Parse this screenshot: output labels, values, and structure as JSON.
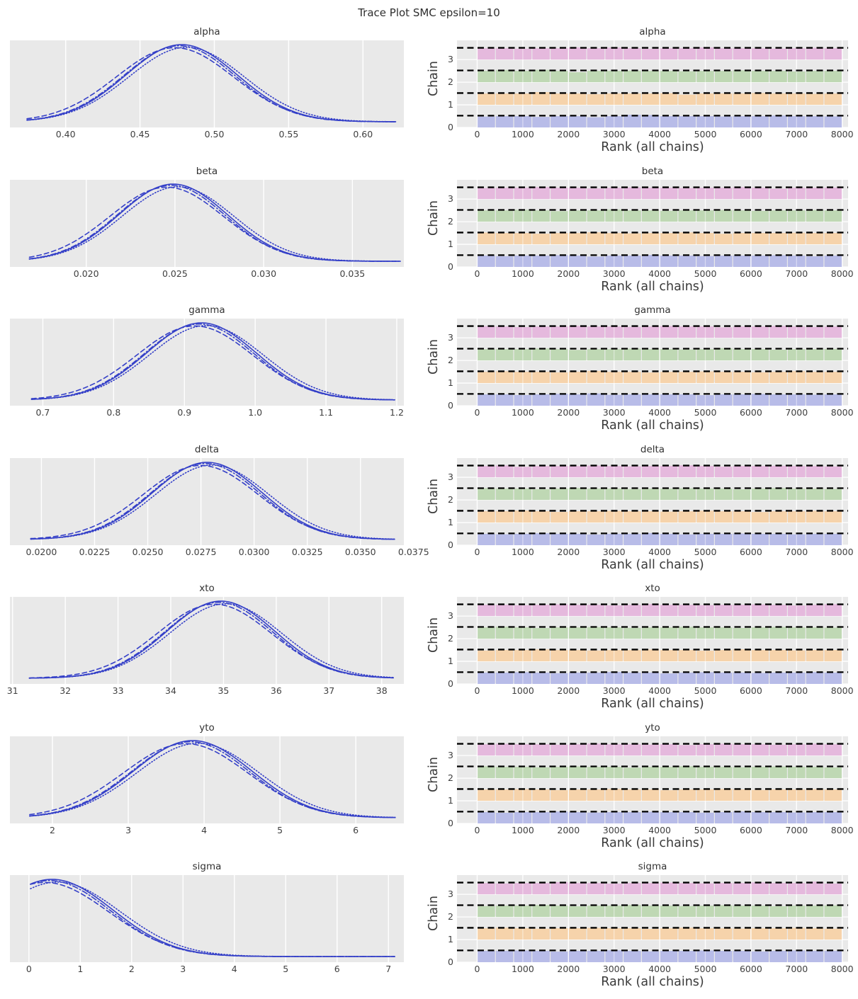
{
  "title": "Trace Plot SMC epsilon=10",
  "style_colors": {
    "plot_background": "#e9e9e9",
    "grid": "#ffffff",
    "kde_line": "#3540c8",
    "reference_dash": "#000000",
    "rank_chain_colors": [
      "#b8bce8",
      "#f6d3ab",
      "#bfd8b4",
      "#e5b9dd"
    ]
  },
  "chart_data": {
    "type": "trace-rank-plot",
    "suptitle": "Trace Plot SMC epsilon=10",
    "n_chains": 4,
    "chain_linestyles": [
      "solid",
      "dashed",
      "dashdot",
      "dotted"
    ],
    "chain_curve_variation": [
      {
        "linestyle": "solid",
        "mu_off": 0.0,
        "sd_scale": 1.0,
        "amp": 1.0
      },
      {
        "linestyle": "dashed",
        "mu_off": -0.12,
        "sd_scale": 1.05,
        "amp": 0.96
      },
      {
        "linestyle": "dashdot",
        "mu_off": -0.04,
        "sd_scale": 1.0,
        "amp": 0.985
      },
      {
        "linestyle": "dotted",
        "mu_off": 0.09,
        "sd_scale": 1.03,
        "amp": 0.965
      }
    ],
    "rank": {
      "xlabel": "Rank (all chains)",
      "ylabel": "Chain",
      "xticks": [
        0,
        1000,
        2000,
        3000,
        4000,
        5000,
        6000,
        7000,
        8000
      ],
      "xlim": [
        0,
        8000
      ],
      "yticks": [
        0,
        1,
        2,
        3
      ],
      "ylim": [
        0,
        3.85
      ],
      "n_bins": 20,
      "band_height": 0.5,
      "reference_level": 0.52,
      "grid": true,
      "legend": "none"
    },
    "panels": [
      {
        "name": "alpha",
        "kde": {
          "type": "kde",
          "xlim": [
            0.3625,
            0.6275
          ],
          "tick_labels": [
            "0.40",
            "0.45",
            "0.50",
            "0.55",
            "0.60"
          ],
          "tick_values": [
            0.4,
            0.45,
            0.5,
            0.55,
            0.6
          ],
          "mu": 0.478,
          "sd": 0.0375,
          "curve_range": [
            0.374,
            0.622
          ]
        },
        "rank_bar_heights": [
          [
            0.96,
            1,
            1,
            0.93,
            1,
            1,
            0.9,
            1,
            1.12,
            1.1,
            1,
            1,
            1,
            0.97,
            1,
            1,
            1.05,
            1,
            1,
            0.98
          ],
          [
            1,
            1,
            1,
            1.12,
            1,
            1,
            0.94,
            1,
            1,
            1,
            1.03,
            0.9,
            1,
            1,
            1,
            1.04,
            1,
            1,
            0.97,
            1
          ],
          [
            1,
            1.08,
            1,
            1.09,
            1,
            0.88,
            1,
            1,
            1.02,
            1,
            1,
            0.97,
            1,
            1,
            1.05,
            1,
            1,
            0.95,
            1,
            1
          ],
          [
            1,
            1,
            0.96,
            1,
            1,
            1.08,
            1,
            1.06,
            1,
            0.95,
            1,
            1,
            1.07,
            1,
            1,
            1,
            0.97,
            1,
            1.04,
            1
          ]
        ]
      },
      {
        "name": "beta",
        "kde": {
          "type": "kde",
          "xlim": [
            0.0157,
            0.0379
          ],
          "tick_labels": [
            "0.020",
            "0.025",
            "0.030",
            "0.035"
          ],
          "tick_values": [
            0.02,
            0.025,
            0.03,
            0.035
          ],
          "mu": 0.0249,
          "sd": 0.00305,
          "curve_range": [
            0.0168,
            0.0377
          ]
        },
        "rank_bar_heights": [
          [
            1,
            0.95,
            1,
            1,
            1.04,
            1,
            0.92,
            1,
            1,
            1.06,
            1,
            1,
            0.96,
            1,
            1,
            1,
            1.03,
            1,
            0.94,
            1
          ],
          [
            1.04,
            1,
            1,
            0.94,
            1,
            1,
            1.06,
            1,
            0.97,
            1,
            1,
            1.05,
            1,
            0.93,
            1,
            1,
            1,
            1.02,
            1,
            1
          ],
          [
            1,
            1,
            1.05,
            1,
            0.93,
            1,
            1,
            1.08,
            1,
            1,
            0.96,
            1,
            1,
            1.04,
            1,
            0.95,
            1,
            1,
            1.03,
            1
          ],
          [
            0.97,
            1,
            1,
            1.06,
            1,
            1,
            0.94,
            1,
            1.03,
            1,
            1,
            0.97,
            1,
            1,
            1.05,
            1,
            0.92,
            1,
            1,
            1.02
          ]
        ]
      },
      {
        "name": "gamma",
        "kde": {
          "type": "kde",
          "xlim": [
            0.6535,
            1.21
          ],
          "tick_labels": [
            "0.7",
            "0.8",
            "0.9",
            "1.0",
            "1.1",
            "1.2"
          ],
          "tick_values": [
            0.7,
            0.8,
            0.9,
            1.0,
            1.1,
            1.2
          ],
          "mu": 0.924,
          "sd": 0.078,
          "curve_range": [
            0.684,
            1.197
          ]
        },
        "rank_bar_heights": [
          [
            1,
            1,
            0.94,
            1,
            1.05,
            1,
            1.08,
            0.96,
            1,
            1,
            1,
            1,
            0.93,
            1,
            1,
            1.04,
            1,
            1,
            0.97,
            1
          ],
          [
            1,
            1.04,
            1,
            1,
            0.95,
            1,
            1.07,
            1,
            1,
            0.94,
            1,
            1,
            1.03,
            1,
            1,
            0.96,
            1,
            1.05,
            1,
            1
          ],
          [
            1,
            1,
            1,
            1.06,
            1,
            0.93,
            1,
            1,
            1.04,
            1,
            1,
            0.97,
            1,
            1.08,
            1,
            1,
            0.95,
            1,
            1,
            1.02
          ],
          [
            1.03,
            1,
            0.95,
            1,
            1,
            1.06,
            1,
            1,
            0.97,
            1,
            1.04,
            1,
            1,
            0.93,
            1,
            1,
            1.05,
            1,
            0.96,
            1
          ]
        ]
      },
      {
        "name": "delta",
        "kde": {
          "type": "kde",
          "xlim": [
            0.01852,
            0.03704
          ],
          "tick_labels": [
            "0.0200",
            "0.0225",
            "0.0250",
            "0.0275",
            "0.0300",
            "0.0325",
            "0.0350",
            "0.0375"
          ],
          "tick_values": [
            0.02,
            0.0225,
            0.025,
            0.0275,
            0.03,
            0.0325,
            0.035,
            0.0375
          ],
          "mu": 0.0278,
          "sd": 0.00258,
          "curve_range": [
            0.0195,
            0.0366
          ]
        },
        "rank_bar_heights": [
          [
            1,
            0.96,
            1,
            1.05,
            1,
            1,
            0.94,
            1,
            1,
            1.07,
            1,
            0.95,
            1,
            1,
            1.03,
            1,
            1,
            0.96,
            1,
            1
          ],
          [
            1,
            1,
            1.06,
            1,
            0.94,
            1,
            1,
            1.03,
            1,
            1,
            0.97,
            1,
            1.05,
            1,
            1,
            0.93,
            1,
            1,
            1.04,
            1
          ],
          [
            1.04,
            1,
            1,
            0.95,
            1,
            1.06,
            1,
            1,
            0.96,
            1,
            1,
            1.03,
            1,
            1,
            0.94,
            1,
            1.05,
            1,
            1,
            0.97
          ],
          [
            1,
            1.05,
            0.93,
            1,
            1,
            1,
            1.04,
            1,
            0.97,
            1,
            1,
            1.06,
            1,
            0.94,
            1,
            1,
            1.02,
            1,
            1,
            0.96
          ]
        ]
      },
      {
        "name": "xto",
        "kde": {
          "type": "kde",
          "xlim": [
            30.95,
            38.42
          ],
          "tick_labels": [
            "31",
            "32",
            "33",
            "34",
            "35",
            "36",
            "37",
            "38"
          ],
          "tick_values": [
            31,
            32,
            33,
            34,
            35,
            36,
            37,
            38
          ],
          "mu": 34.95,
          "sd": 1.03,
          "curve_range": [
            31.32,
            38.22
          ]
        },
        "rank_bar_heights": [
          [
            1,
            1,
            1.04,
            1,
            0.95,
            1,
            1,
            1.06,
            1,
            1,
            0.93,
            1,
            1.03,
            1,
            1,
            0.97,
            1,
            1,
            1.05,
            1
          ],
          [
            0.95,
            1,
            1,
            1.05,
            1,
            1,
            0.96,
            1,
            1,
            1.04,
            1,
            1,
            0.94,
            1,
            1.06,
            1,
            1,
            0.97,
            1,
            1
          ],
          [
            1,
            1.06,
            1,
            0.94,
            1,
            1,
            1.03,
            1,
            0.96,
            1,
            1,
            1.05,
            1,
            1,
            0.95,
            1,
            1.04,
            1,
            1,
            0.98
          ],
          [
            1,
            1,
            0.96,
            1,
            1.04,
            1,
            1,
            0.95,
            1,
            1.06,
            1,
            1,
            0.97,
            1,
            1,
            1.03,
            1,
            0.94,
            1,
            1.05
          ]
        ]
      },
      {
        "name": "yto",
        "kde": {
          "type": "kde",
          "xlim": [
            1.439,
            6.634
          ],
          "tick_labels": [
            "2",
            "3",
            "4",
            "5",
            "6"
          ],
          "tick_values": [
            2,
            3,
            4,
            5,
            6
          ],
          "mu": 3.85,
          "sd": 0.78,
          "curve_range": [
            1.7,
            6.52
          ]
        },
        "rank_bar_heights": [
          [
            1,
            0.94,
            1,
            1,
            1.05,
            1,
            0.96,
            1,
            1,
            1.03,
            1,
            1,
            0.95,
            1,
            1.06,
            1,
            1,
            0.97,
            1,
            1
          ],
          [
            1,
            1,
            1.03,
            1,
            0.95,
            1,
            1,
            1.05,
            1,
            1,
            0.94,
            1,
            1,
            1.04,
            1,
            0.96,
            1,
            1,
            1.03,
            1
          ],
          [
            1.05,
            1,
            1,
            0.96,
            1,
            1.04,
            1,
            1,
            0.93,
            1,
            1,
            1.05,
            1,
            1,
            0.97,
            1,
            1.03,
            1,
            1,
            0.95
          ],
          [
            1,
            1.04,
            1,
            1,
            0.96,
            1,
            1.05,
            1,
            1,
            0.97,
            1,
            0.93,
            1,
            1.04,
            1,
            1,
            0.96,
            1,
            1.05,
            1
          ]
        ]
      },
      {
        "name": "sigma",
        "kde": {
          "type": "kde",
          "xlim": [
            -0.37,
            7.3
          ],
          "tick_labels": [
            "0",
            "1",
            "2",
            "3",
            "4",
            "5",
            "6",
            "7"
          ],
          "tick_values": [
            0,
            1,
            2,
            3,
            4,
            5,
            6,
            7
          ],
          "mu": 0.45,
          "sd": 1.18,
          "curve_range": [
            0.03,
            7.12
          ]
        },
        "rank_bar_heights": [
          [
            1,
            1,
            1.03,
            1,
            0.94,
            1,
            1,
            1.05,
            1,
            0.96,
            1,
            1,
            1.04,
            1,
            1,
            0.95,
            1,
            1.03,
            1,
            1
          ],
          [
            1,
            1.05,
            1,
            0.96,
            1,
            1,
            1.04,
            1,
            1,
            0.94,
            1,
            1.05,
            1,
            1,
            0.97,
            1,
            1,
            1.03,
            1,
            0.96
          ],
          [
            0.96,
            1,
            1,
            1.05,
            1,
            0.94,
            1,
            1,
            1.06,
            1,
            1,
            0.97,
            1,
            1.04,
            1,
            1,
            0.95,
            1,
            1,
            1.02
          ],
          [
            1,
            0.96,
            1,
            1,
            1.08,
            1,
            1,
            0.95,
            1,
            1,
            1.04,
            1,
            0.97,
            1,
            1,
            1.05,
            1,
            1,
            1.12,
            0.95
          ]
        ]
      }
    ]
  }
}
